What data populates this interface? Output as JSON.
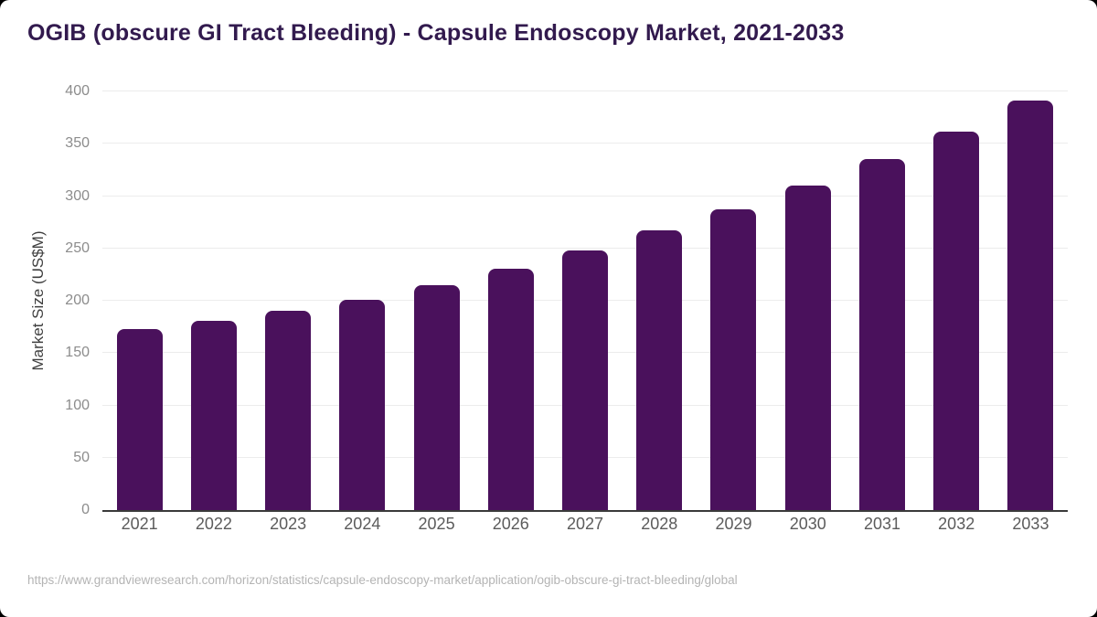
{
  "chart": {
    "title": "OGIB (obscure GI Tract Bleeding) - Capsule Endoscopy Market, 2021-2033",
    "ylabel": "Market Size (US$M)"
  },
  "chart_data": {
    "type": "bar",
    "title": "OGIB (obscure GI Tract Bleeding) - Capsule Endoscopy Market, 2021-2033",
    "categories": [
      "2021",
      "2022",
      "2023",
      "2024",
      "2025",
      "2026",
      "2027",
      "2028",
      "2029",
      "2030",
      "2031",
      "2032",
      "2033"
    ],
    "values": [
      173,
      181,
      190,
      201,
      215,
      231,
      248,
      267,
      287,
      310,
      335,
      362,
      391
    ],
    "xlabel": "",
    "ylabel": "Market Size (US$M)",
    "ylim": [
      0,
      400
    ],
    "ytick_step": 50,
    "grid": true,
    "legend": "none",
    "bar_color": "#4a115c"
  },
  "colors": {
    "bar": "#4a115c",
    "title_text": "#321a4e",
    "axis_line": "#3a3a3a",
    "gridline": "#ececec",
    "y_tick_text": "#8c8c8c",
    "x_tick_text": "#5b5b5b",
    "footer_text": "#b4b4b4",
    "background": "#ffffff"
  },
  "footer": {
    "url": "https://www.grandviewresearch.com/horizon/statistics/capsule-endoscopy-market/application/ogib-obscure-gi-tract-bleeding/global"
  }
}
